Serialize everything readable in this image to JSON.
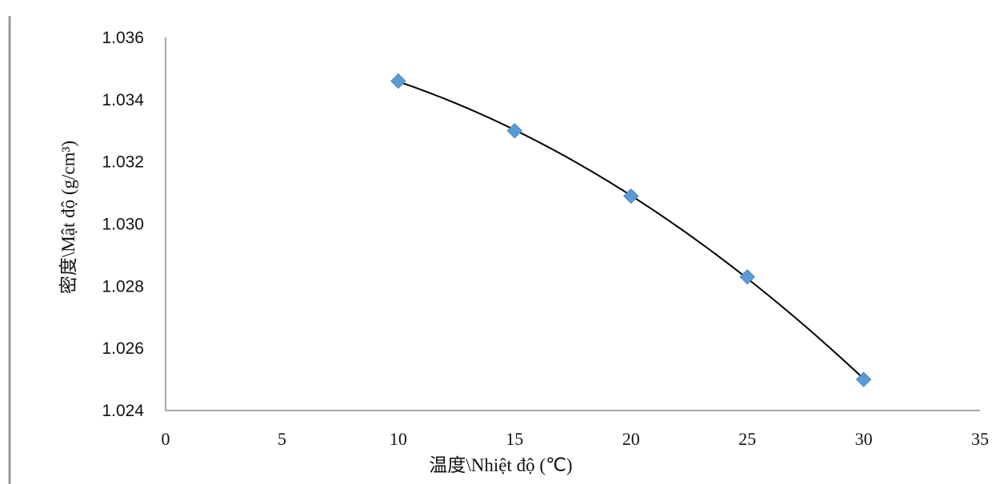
{
  "chart_data": {
    "type": "scatter",
    "title": "",
    "xlabel": "温度\\Nhiệt độ (℃)",
    "ylabel": "密度\\Mật độ (g/cm³)",
    "xlim": [
      0,
      35
    ],
    "ylim": [
      1.024,
      1.036
    ],
    "x_ticks": [
      "0",
      "5",
      "10",
      "15",
      "20",
      "25",
      "30",
      "35"
    ],
    "y_ticks": [
      "1.024",
      "1.026",
      "1.028",
      "1.030",
      "1.032",
      "1.034",
      "1.036"
    ],
    "grid": false,
    "legend": "none",
    "series": [
      {
        "marker": "diamond",
        "color": "#5b9bd5",
        "points": [
          {
            "x": 10,
            "y": 1.0346
          },
          {
            "x": 15,
            "y": 1.033
          },
          {
            "x": 20,
            "y": 1.0309
          },
          {
            "x": 25,
            "y": 1.0283
          },
          {
            "x": 30,
            "y": 1.025
          }
        ]
      }
    ],
    "trendline": {
      "type": "polynomial",
      "color": "#000000"
    }
  },
  "colors": {
    "marker": "#5b9bd5",
    "trendline": "#000000",
    "axis": "#888888"
  }
}
